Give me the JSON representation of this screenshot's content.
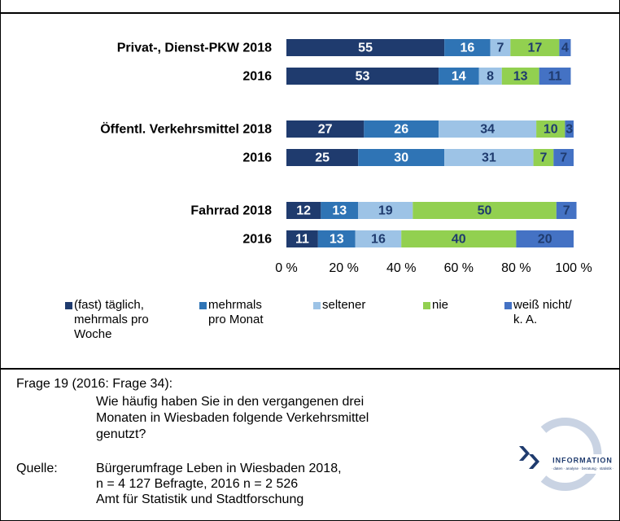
{
  "chart_data": {
    "type": "bar",
    "orientation": "horizontal",
    "stacked": true,
    "categories": [
      "Privat-, Dienst-PKW 2018",
      "2016",
      "Öffentl. Verkehrsmittel 2018",
      "2016",
      "Fahrrad 2018",
      "2016"
    ],
    "series": [
      {
        "name": "(fast) täglich, mehrmals pro Woche",
        "color": "#1f3b6e",
        "label_color": "#ffffff",
        "values": [
          55,
          53,
          27,
          25,
          12,
          11
        ]
      },
      {
        "name": "mehrmals pro Monat",
        "color": "#2f74b5",
        "label_color": "#ffffff",
        "values": [
          16,
          14,
          26,
          30,
          13,
          13
        ]
      },
      {
        "name": "seltener",
        "color": "#9dc3e6",
        "label_color": "#1f3b6e",
        "values": [
          7,
          8,
          34,
          31,
          19,
          16
        ]
      },
      {
        "name": "nie",
        "color": "#92d050",
        "label_color": "#1f3b6e",
        "values": [
          17,
          13,
          10,
          7,
          50,
          40
        ]
      },
      {
        "name": "weiß nicht/ k. A.",
        "color": "#4472c4",
        "label_color": "#1f3b6e",
        "values": [
          4,
          11,
          3,
          7,
          7,
          20
        ]
      }
    ],
    "xlim": [
      0,
      100
    ],
    "xticks": [
      {
        "value": 0,
        "label": "0 %"
      },
      {
        "value": 20,
        "label": "20 %"
      },
      {
        "value": 40,
        "label": "40 %"
      },
      {
        "value": 60,
        "label": "60 %"
      },
      {
        "value": 80,
        "label": "80 %"
      },
      {
        "value": 100,
        "label": "100 %"
      }
    ]
  },
  "footer": {
    "question_label": "Frage 19 (2016: Frage 34):",
    "question": "Wie häufig haben Sie in den vergangenen drei Monaten in Wiesbaden folgende Verkehrsmittel genutzt?",
    "source_label": "Quelle:",
    "source_lines": [
      "Bürgerumfrage Leben in Wiesbaden 2018,",
      "n = 4 127 Befragte, 2016 n = 2 526",
      "Amt für Statistik und Stadtforschung"
    ]
  },
  "logo": {
    "name": "INFORMATION",
    "tagline": "· daten · analyse · beratung · statistik ·"
  }
}
